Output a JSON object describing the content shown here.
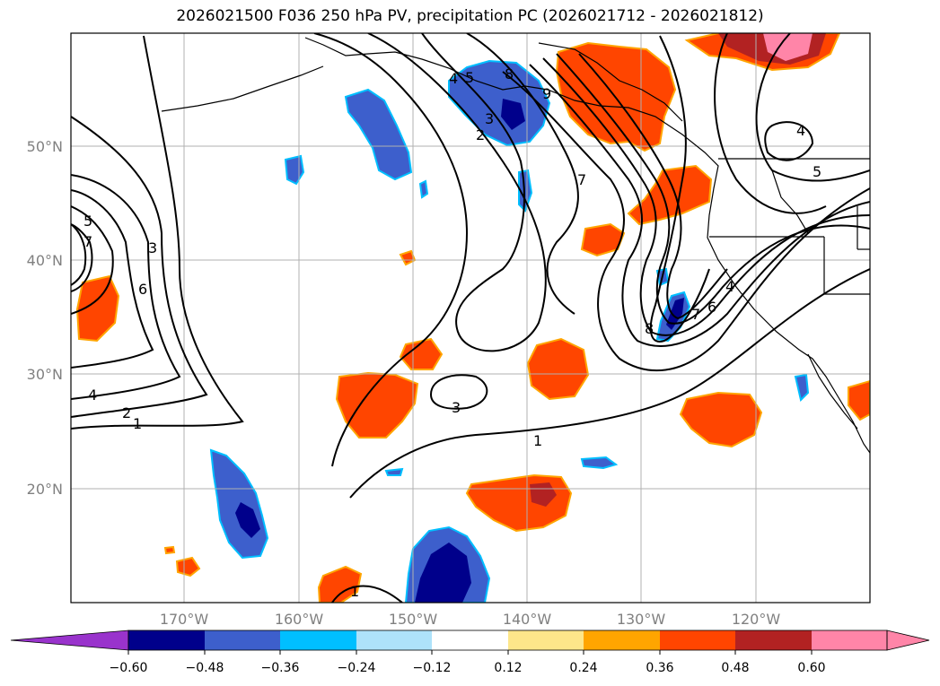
{
  "title": "2026021500 F036 250 hPa PV, precipitation PC (2026021712 - 2026021812)",
  "colors": {
    "neg_060": "#9933cc",
    "neg_048": "#00008b",
    "neg_036": "#3d5fcc",
    "neg_024": "#00bfff",
    "neg_012": "#aee2fa",
    "zero": "#ffffff",
    "pos_012": "#fde68a",
    "pos_024": "#ffa500",
    "pos_036": "#ff4500",
    "pos_048": "#b22222",
    "pos_060": "#ff85a8",
    "grid": "#b0b0b0",
    "coast": "#000000"
  },
  "lat_labels": [
    "50°N",
    "40°N",
    "30°N",
    "20°N"
  ],
  "lon_labels": [
    "170°W",
    "160°W",
    "150°W",
    "140°W",
    "130°W",
    "120°W"
  ],
  "colorbar": {
    "ticks": [
      "−0.60",
      "−0.48",
      "−0.36",
      "−0.24",
      "−0.12",
      "0.12",
      "0.24",
      "0.36",
      "0.48",
      "0.60"
    ]
  },
  "contour_labels": [
    "5",
    "7",
    "3",
    "6",
    "4",
    "2",
    "1",
    "4",
    "5",
    "8",
    "9",
    "3",
    "2",
    "7",
    "8",
    "7",
    "6",
    "4",
    "3",
    "1",
    "1",
    "4",
    "5"
  ]
}
